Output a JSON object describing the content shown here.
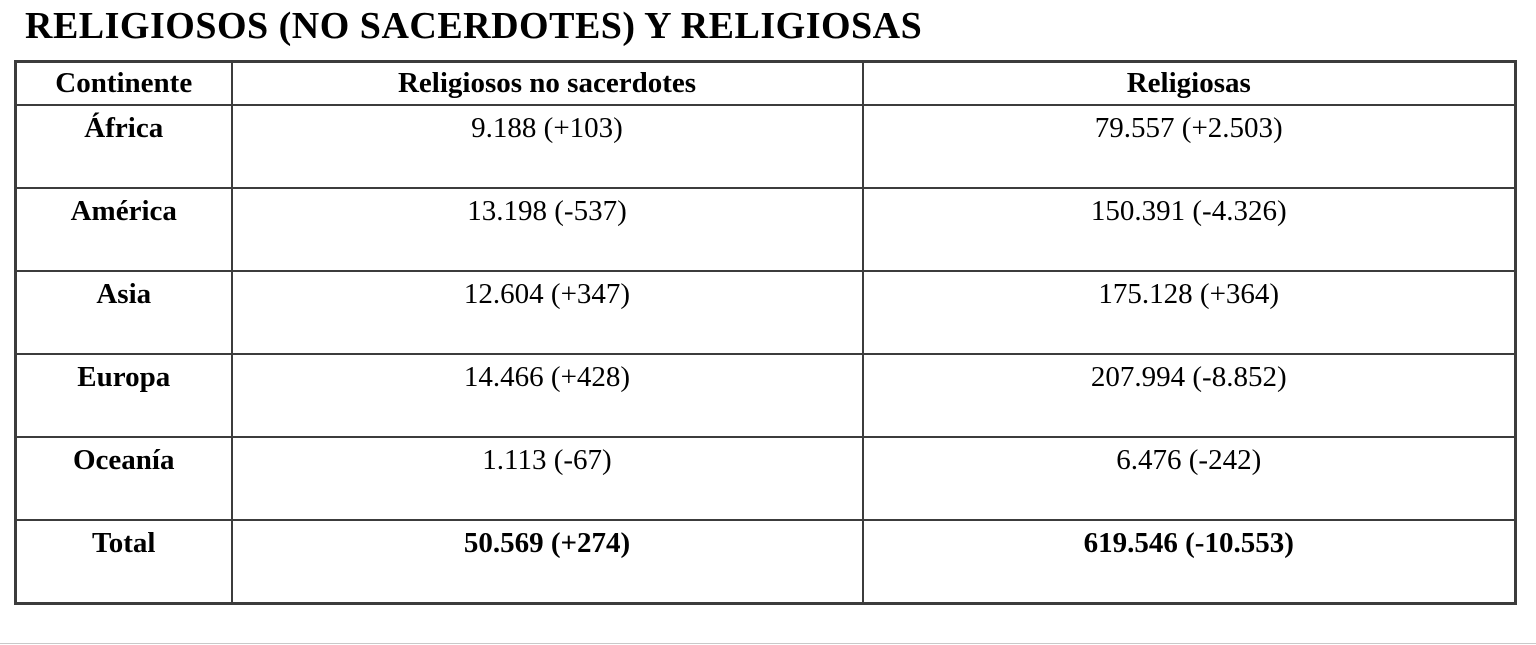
{
  "title": "RELIGIOSOS (NO SACERDOTES) Y RELIGIOSAS",
  "table": {
    "headers": [
      "Continente",
      "Religiosos no sacerdotes",
      "Religiosas"
    ],
    "rows": [
      {
        "continent": "África",
        "religiosos": "9.188 (+103)",
        "religiosas": "79.557 (+2.503)"
      },
      {
        "continent": "América",
        "religiosos": "13.198 (-537)",
        "religiosas": "150.391 (-4.326)"
      },
      {
        "continent": "Asia",
        "religiosos": "12.604 (+347)",
        "religiosas": "175.128 (+364)"
      },
      {
        "continent": "Europa",
        "religiosos": "14.466 (+428)",
        "religiosas": "207.994 (-8.852)"
      },
      {
        "continent": "Oceanía",
        "religiosos": "1.113 (-67)",
        "religiosas": "6.476 (-242)"
      }
    ],
    "total": {
      "continent": "Total",
      "religiosos": "50.569 (+274)",
      "religiosas": "619.546 (-10.553)"
    }
  },
  "colors": {
    "border": "#3c3c3c",
    "text": "#000000",
    "background": "#ffffff"
  }
}
